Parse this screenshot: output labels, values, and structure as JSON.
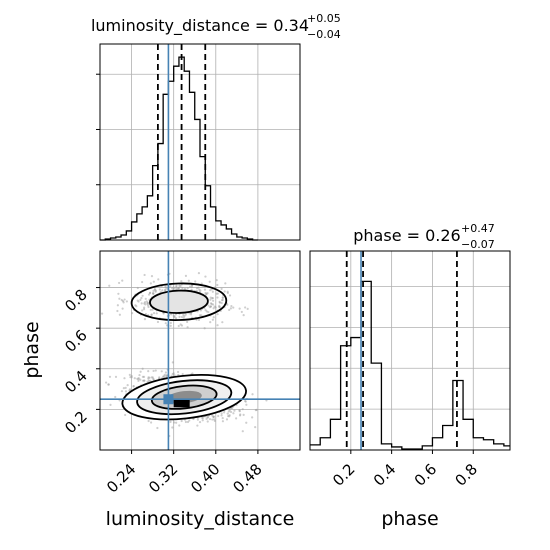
{
  "chart_data": [
    {
      "type": "histogram",
      "panel": "luminosity_distance marginal",
      "title_param": "luminosity_distance",
      "title_value": "0.34",
      "title_err_plus": "+0.05",
      "title_err_minus": "−0.04",
      "xlim": [
        0.18,
        0.56
      ],
      "bin_edges": [
        0.18,
        0.19,
        0.2,
        0.21,
        0.22,
        0.23,
        0.24,
        0.25,
        0.26,
        0.27,
        0.28,
        0.29,
        0.3,
        0.31,
        0.32,
        0.33,
        0.34,
        0.35,
        0.36,
        0.37,
        0.38,
        0.39,
        0.4,
        0.41,
        0.42,
        0.43,
        0.44,
        0.45,
        0.46,
        0.47,
        0.48
      ],
      "counts": [
        0,
        1,
        2,
        3,
        5,
        9,
        18,
        26,
        33,
        44,
        74,
        96,
        145,
        158,
        173,
        182,
        168,
        147,
        120,
        83,
        54,
        33,
        19,
        15,
        11,
        6,
        3,
        2,
        1,
        0
      ],
      "quantile_lines": [
        0.29,
        0.335,
        0.38
      ],
      "truth": 0.31,
      "grid": true
    },
    {
      "type": "scatter",
      "panel": "phase vs luminosity_distance",
      "xlabel": "luminosity_distance",
      "ylabel": "phase",
      "xlim": [
        0.18,
        0.56
      ],
      "ylim": [
        0.0,
        0.98
      ],
      "x_ticks": [
        "0.24",
        "0.32",
        "0.40",
        "0.48"
      ],
      "x_tick_values": [
        0.24,
        0.32,
        0.4,
        0.48
      ],
      "y_ticks": [
        "0.2",
        "0.4",
        "0.6",
        "0.8"
      ],
      "y_tick_values": [
        0.2,
        0.4,
        0.6,
        0.8
      ],
      "modes": [
        {
          "cx": 0.34,
          "cy": 0.26,
          "sx": 0.045,
          "sy": 0.05,
          "n": 1200,
          "tilt": -0.35
        },
        {
          "cx": 0.33,
          "cy": 0.73,
          "sx": 0.04,
          "sy": 0.05,
          "n": 500,
          "tilt": -0.1
        }
      ],
      "truth": [
        0.31,
        0.25
      ],
      "grid": true
    },
    {
      "type": "histogram",
      "panel": "phase marginal",
      "title_param": "phase",
      "title_value": "0.26",
      "title_err_plus": "+0.47",
      "title_err_minus": "−0.07",
      "xlim": [
        0.0,
        0.98
      ],
      "bin_edges": [
        0.0,
        0.05,
        0.1,
        0.15,
        0.2,
        0.25,
        0.3,
        0.35,
        0.4,
        0.45,
        0.5,
        0.55,
        0.6,
        0.65,
        0.7,
        0.75,
        0.8,
        0.85,
        0.9,
        0.95,
        0.98
      ],
      "counts": [
        5,
        12,
        30,
        102,
        110,
        165,
        85,
        6,
        3,
        1,
        1,
        4,
        12,
        24,
        68,
        30,
        12,
        10,
        6,
        4
      ],
      "quantile_lines": [
        0.18,
        0.26,
        0.72
      ],
      "truth": 0.25,
      "x_ticks": [
        "0.2",
        "0.4",
        "0.6",
        "0.8"
      ],
      "x_tick_values": [
        0.2,
        0.4,
        0.6,
        0.8
      ],
      "xlabel": "phase",
      "grid": true
    }
  ],
  "colors": {
    "truth": "#4682b4",
    "line": "#000000",
    "grid": "#b0b0b0",
    "scatter": "#9e9e9e"
  }
}
